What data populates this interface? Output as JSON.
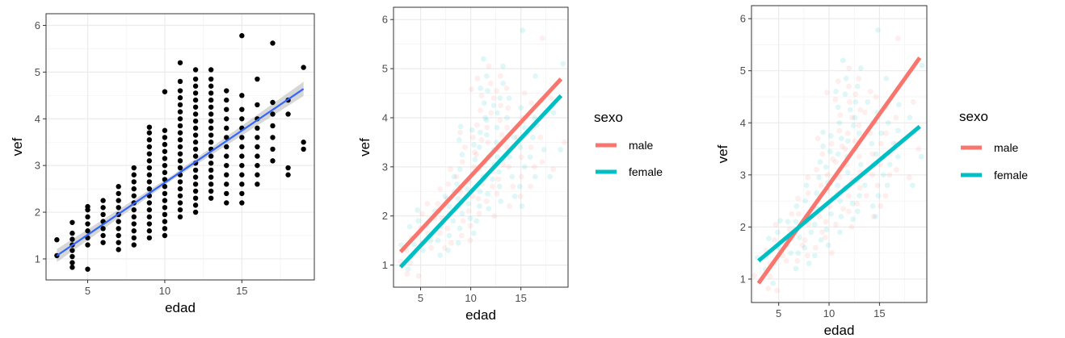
{
  "chart_data": [
    {
      "type": "scatter",
      "xlabel": "edad",
      "ylabel": "vef",
      "xlim": [
        2.3,
        19.7
      ],
      "ylim": [
        0.55,
        6.25
      ],
      "xticks": [
        5,
        10,
        15
      ],
      "yticks": [
        1,
        2,
        3,
        4,
        5,
        6
      ],
      "grid": true,
      "points": [
        [
          3,
          1.07
        ],
        [
          3,
          1.41
        ],
        [
          4,
          0.82
        ],
        [
          4,
          0.92
        ],
        [
          4,
          1.05
        ],
        [
          4,
          1.18
        ],
        [
          4,
          1.3
        ],
        [
          4,
          1.42
        ],
        [
          4,
          1.55
        ],
        [
          4,
          1.78
        ],
        [
          5,
          0.78
        ],
        [
          5,
          1.3
        ],
        [
          5,
          1.45
        ],
        [
          5,
          1.6
        ],
        [
          5,
          1.75
        ],
        [
          5,
          1.9
        ],
        [
          5,
          2.05
        ],
        [
          5,
          2.12
        ],
        [
          6,
          1.35
        ],
        [
          6,
          1.5
        ],
        [
          6,
          1.65
        ],
        [
          6,
          1.8
        ],
        [
          6,
          1.95
        ],
        [
          6,
          2.1
        ],
        [
          6,
          2.25
        ],
        [
          7,
          1.2
        ],
        [
          7,
          1.35
        ],
        [
          7,
          1.5
        ],
        [
          7,
          1.65
        ],
        [
          7,
          1.8
        ],
        [
          7,
          1.95
        ],
        [
          7,
          2.1
        ],
        [
          7,
          2.25
        ],
        [
          7,
          2.4
        ],
        [
          7,
          2.55
        ],
        [
          8,
          1.3
        ],
        [
          8,
          1.45
        ],
        [
          8,
          1.6
        ],
        [
          8,
          1.75
        ],
        [
          8,
          1.9
        ],
        [
          8,
          2.05
        ],
        [
          8,
          2.2
        ],
        [
          8,
          2.35
        ],
        [
          8,
          2.5
        ],
        [
          8,
          2.65
        ],
        [
          8,
          2.8
        ],
        [
          8,
          2.95
        ],
        [
          9,
          1.45
        ],
        [
          9,
          1.6
        ],
        [
          9,
          1.75
        ],
        [
          9,
          1.9
        ],
        [
          9,
          2.05
        ],
        [
          9,
          2.2
        ],
        [
          9,
          2.35
        ],
        [
          9,
          2.5
        ],
        [
          9,
          2.65
        ],
        [
          9,
          2.8
        ],
        [
          9,
          2.95
        ],
        [
          9,
          3.1
        ],
        [
          9,
          3.25
        ],
        [
          9,
          3.4
        ],
        [
          9,
          3.55
        ],
        [
          9,
          3.7
        ],
        [
          9,
          3.82
        ],
        [
          10,
          1.5
        ],
        [
          10,
          1.65
        ],
        [
          10,
          1.8
        ],
        [
          10,
          1.95
        ],
        [
          10,
          2.1
        ],
        [
          10,
          2.25
        ],
        [
          10,
          2.4
        ],
        [
          10,
          2.55
        ],
        [
          10,
          2.7
        ],
        [
          10,
          2.85
        ],
        [
          10,
          3.0
        ],
        [
          10,
          3.15
        ],
        [
          10,
          3.3
        ],
        [
          10,
          3.45
        ],
        [
          10,
          3.6
        ],
        [
          10,
          3.75
        ],
        [
          10,
          4.58
        ],
        [
          11,
          1.9
        ],
        [
          11,
          2.05
        ],
        [
          11,
          2.2
        ],
        [
          11,
          2.35
        ],
        [
          11,
          2.5
        ],
        [
          11,
          2.65
        ],
        [
          11,
          2.8
        ],
        [
          11,
          2.95
        ],
        [
          11,
          3.1
        ],
        [
          11,
          3.25
        ],
        [
          11,
          3.4
        ],
        [
          11,
          3.55
        ],
        [
          11,
          3.7
        ],
        [
          11,
          3.85
        ],
        [
          11,
          4.0
        ],
        [
          11,
          4.15
        ],
        [
          11,
          4.3
        ],
        [
          11,
          4.45
        ],
        [
          11,
          4.6
        ],
        [
          11,
          4.8
        ],
        [
          11,
          5.2
        ],
        [
          12,
          2.0
        ],
        [
          12,
          2.15
        ],
        [
          12,
          2.3
        ],
        [
          12,
          2.45
        ],
        [
          12,
          2.6
        ],
        [
          12,
          2.75
        ],
        [
          12,
          2.9
        ],
        [
          12,
          3.05
        ],
        [
          12,
          3.2
        ],
        [
          12,
          3.35
        ],
        [
          12,
          3.5
        ],
        [
          12,
          3.65
        ],
        [
          12,
          3.8
        ],
        [
          12,
          3.95
        ],
        [
          12,
          4.1
        ],
        [
          12,
          4.25
        ],
        [
          12,
          4.4
        ],
        [
          12,
          4.55
        ],
        [
          12,
          4.7
        ],
        [
          12,
          4.85
        ],
        [
          12,
          5.05
        ],
        [
          13,
          2.3
        ],
        [
          13,
          2.45
        ],
        [
          13,
          2.6
        ],
        [
          13,
          2.75
        ],
        [
          13,
          2.9
        ],
        [
          13,
          3.05
        ],
        [
          13,
          3.2
        ],
        [
          13,
          3.35
        ],
        [
          13,
          3.5
        ],
        [
          13,
          3.65
        ],
        [
          13,
          3.8
        ],
        [
          13,
          3.95
        ],
        [
          13,
          4.1
        ],
        [
          13,
          4.25
        ],
        [
          13,
          4.4
        ],
        [
          13,
          4.55
        ],
        [
          13,
          4.7
        ],
        [
          13,
          4.85
        ],
        [
          13,
          5.05
        ],
        [
          14,
          2.2
        ],
        [
          14,
          2.4
        ],
        [
          14,
          2.6
        ],
        [
          14,
          2.8
        ],
        [
          14,
          3.0
        ],
        [
          14,
          3.2
        ],
        [
          14,
          3.4
        ],
        [
          14,
          3.6
        ],
        [
          14,
          3.8
        ],
        [
          14,
          4.0
        ],
        [
          14,
          4.2
        ],
        [
          14,
          4.4
        ],
        [
          14,
          4.6
        ],
        [
          15,
          2.2
        ],
        [
          15,
          2.4
        ],
        [
          15,
          2.6
        ],
        [
          15,
          2.8
        ],
        [
          15,
          3.0
        ],
        [
          15,
          3.2
        ],
        [
          15,
          3.4
        ],
        [
          15,
          3.6
        ],
        [
          15,
          3.8
        ],
        [
          15,
          4.0
        ],
        [
          15,
          4.2
        ],
        [
          15,
          4.5
        ],
        [
          15,
          5.78
        ],
        [
          16,
          2.6
        ],
        [
          16,
          2.8
        ],
        [
          16,
          3.0
        ],
        [
          16,
          3.2
        ],
        [
          16,
          3.4
        ],
        [
          16,
          3.6
        ],
        [
          16,
          3.8
        ],
        [
          16,
          4.0
        ],
        [
          16,
          4.3
        ],
        [
          16,
          4.85
        ],
        [
          17,
          3.1
        ],
        [
          17,
          3.35
        ],
        [
          17,
          3.6
        ],
        [
          17,
          3.85
        ],
        [
          17,
          4.1
        ],
        [
          17,
          4.35
        ],
        [
          17,
          5.62
        ],
        [
          18,
          2.8
        ],
        [
          18,
          2.95
        ],
        [
          18,
          4.1
        ],
        [
          18,
          4.4
        ],
        [
          19,
          3.35
        ],
        [
          19,
          3.5
        ],
        [
          19,
          5.1
        ]
      ],
      "fit": {
        "x": [
          3,
          19
        ],
        "y": [
          1.07,
          4.64
        ],
        "color": "#3366ff",
        "band_color": "#bdbdbd"
      }
    },
    {
      "type": "line",
      "xlabel": "edad",
      "ylabel": "vef",
      "xlim": [
        2.3,
        19.7
      ],
      "ylim": [
        0.55,
        6.25
      ],
      "xticks": [
        5,
        10,
        15
      ],
      "yticks": [
        1,
        2,
        3,
        4,
        5,
        6
      ],
      "grid": true,
      "series": [
        {
          "name": "male",
          "color": "#f8766d",
          "x": [
            3,
            19
          ],
          "y": [
            1.27,
            4.79
          ]
        },
        {
          "name": "female",
          "color": "#00bfc4",
          "x": [
            3,
            19
          ],
          "y": [
            0.96,
            4.45
          ]
        }
      ],
      "legend": {
        "title": "sexo",
        "position": "right"
      }
    },
    {
      "type": "line",
      "xlabel": "edad",
      "ylabel": "vef",
      "xlim": [
        2.3,
        19.7
      ],
      "ylim": [
        0.55,
        6.25
      ],
      "xticks": [
        5,
        10,
        15
      ],
      "yticks": [
        1,
        2,
        3,
        4,
        5,
        6
      ],
      "grid": true,
      "series": [
        {
          "name": "male",
          "color": "#f8766d",
          "x": [
            3,
            19
          ],
          "y": [
            0.92,
            5.25
          ]
        },
        {
          "name": "female",
          "color": "#00bfc4",
          "x": [
            3,
            19
          ],
          "y": [
            1.35,
            3.93
          ]
        }
      ],
      "legend": {
        "title": "sexo",
        "position": "right"
      }
    }
  ]
}
